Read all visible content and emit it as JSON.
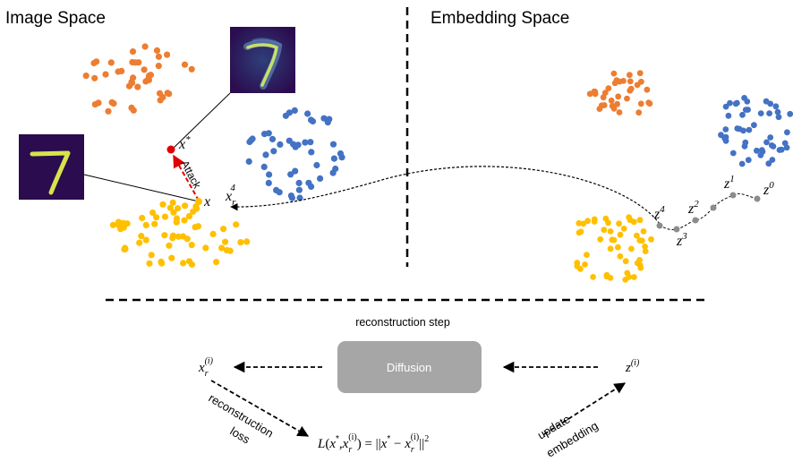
{
  "sections": {
    "image_space_title": "Image Space",
    "embedding_space_title": "Embedding Space"
  },
  "image_space": {
    "adversarial_label": "x",
    "adversarial_sup": "*",
    "original_label": "x",
    "recon_label": "x",
    "recon_sub": "r",
    "recon_sup": "4",
    "attack_label": "Attack",
    "digit_glyph": "7"
  },
  "embedding_space": {
    "z0": {
      "base": "z",
      "sup": "0"
    },
    "z1": {
      "base": "z",
      "sup": "1"
    },
    "z2": {
      "base": "z",
      "sup": "2"
    },
    "z3": {
      "base": "z",
      "sup": "3"
    },
    "z4": {
      "base": "z",
      "sup": "4"
    }
  },
  "bottom": {
    "reconstruction_step": "reconstruction step",
    "diffusion_label": "Diffusion",
    "x_recon_base": "x",
    "x_recon_sub": "r",
    "x_recon_sup": "(i)",
    "z_i_base": "z",
    "z_i_sup": "(i)",
    "reconstruction_loss_line1": "reconstruction",
    "reconstruction_loss_line2": "loss",
    "update_embedding_line1": "update",
    "update_embedding_line2": "embedding",
    "loss_formula": {
      "L": "L",
      "open": "(",
      "xstar": "x",
      "star": "*",
      "comma": ",",
      "xr": "x",
      "r": "r",
      "i": "(i)",
      "eq": ") = ||",
      "xstar2": "x",
      "star2": "*",
      "minus": " − ",
      "xr2": "x",
      "r2": "r",
      "i2": "(i)",
      "close": "||",
      "pow": "2"
    }
  },
  "colors": {
    "orange": "#ED7D31",
    "blue": "#4472C4",
    "yellow": "#FFC000",
    "gray": "#8C8C8C",
    "red": "#E00000",
    "diffusion_box": "#A6A6A6",
    "digit_bg": "#2B0C4E",
    "digit_stroke": "#D7E34A"
  }
}
